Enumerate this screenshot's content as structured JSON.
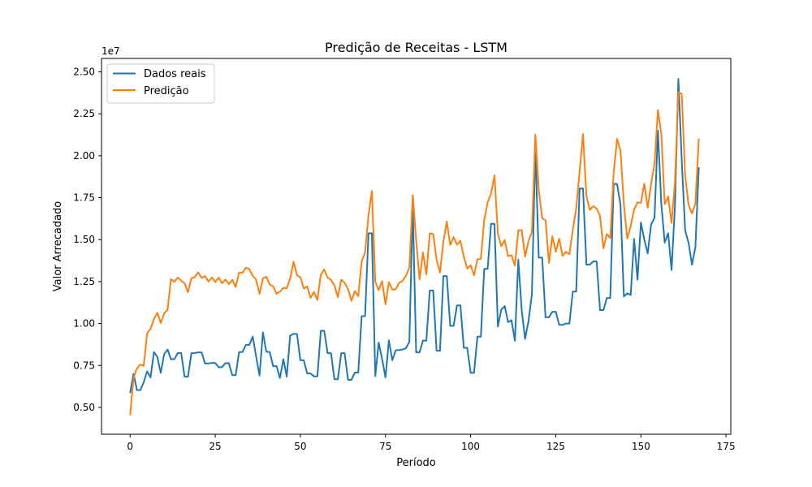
{
  "chart_data": {
    "type": "line",
    "title": "Predição de Receitas - LSTM",
    "xlabel": "Período",
    "ylabel": "Valor Arrecadado",
    "y_multiplier_label": "1e7",
    "xlim": [
      -8.4,
      176.4
    ],
    "ylim": [
      3400000,
      25800000
    ],
    "x_ticks": [
      0,
      25,
      50,
      75,
      100,
      125,
      150,
      175
    ],
    "y_ticks": [
      5000000,
      7500000,
      10000000,
      12500000,
      15000000,
      17500000,
      20000000,
      22500000,
      25000000
    ],
    "y_tick_labels": [
      "0.50",
      "0.75",
      "1.00",
      "1.25",
      "1.50",
      "1.75",
      "2.00",
      "2.25",
      "2.50"
    ],
    "legend_position": "top-left",
    "grid": false,
    "series": [
      {
        "name": "Dados reais",
        "color": "#1f77b4",
        "values": [
          5850000,
          7000000,
          6030000,
          6030000,
          6500000,
          7150000,
          6780000,
          8300000,
          8000000,
          7060000,
          8170000,
          8450000,
          7870000,
          7880000,
          8240000,
          8240000,
          6830000,
          6830000,
          8230000,
          8240000,
          8280000,
          8280000,
          7620000,
          7620000,
          7650000,
          7650000,
          7400000,
          7400000,
          7640000,
          7640000,
          6920000,
          6920000,
          8300000,
          8300000,
          8730000,
          8730000,
          9220000,
          8050000,
          6900000,
          9470000,
          8320000,
          8300000,
          7460000,
          7460000,
          6750000,
          7880000,
          6830000,
          9280000,
          9380000,
          9380000,
          7810000,
          7810000,
          7020000,
          7020000,
          6850000,
          6850000,
          9570000,
          9570000,
          8230000,
          8230000,
          6680000,
          6680000,
          8230000,
          8230000,
          6640000,
          6640000,
          7080000,
          7080000,
          10440000,
          10440000,
          15380000,
          15380000,
          6860000,
          8860000,
          7880000,
          6790000,
          9000000,
          7810000,
          8400000,
          8420000,
          8450000,
          8530000,
          8900000,
          17030000,
          8280000,
          8280000,
          8980000,
          8980000,
          11970000,
          11970000,
          8380000,
          8380000,
          12830000,
          12830000,
          9860000,
          9860000,
          11080000,
          11080000,
          8550000,
          8550000,
          7060000,
          7060000,
          9220000,
          9220000,
          13260000,
          13260000,
          15940000,
          15940000,
          9820000,
          10830000,
          11040000,
          10080000,
          10190000,
          8970000,
          13800000,
          10790000,
          9080000,
          10150000,
          11770000,
          20500000,
          13930000,
          13930000,
          10370000,
          10370000,
          10700000,
          10700000,
          9920000,
          9920000,
          10000000,
          10000000,
          11900000,
          11900000,
          18050000,
          18050000,
          13510000,
          13510000,
          13700000,
          13700000,
          10800000,
          10800000,
          11520000,
          11520000,
          18320000,
          18320000,
          17100000,
          11610000,
          11800000,
          11700000,
          15050000,
          12610000,
          16020000,
          15000000,
          14180000,
          15900000,
          16300000,
          21500000,
          17100000,
          14820000,
          15380000,
          13190000,
          17000000,
          24580000,
          19700000,
          15550000,
          14800000,
          13510000,
          14550000,
          19320000
        ]
      },
      {
        "name": "Predição",
        "color": "#ff7f0e",
        "values": [
          4530000,
          6740000,
          7320000,
          7560000,
          7480000,
          9420000,
          9680000,
          10270000,
          10630000,
          10030000,
          10600000,
          10830000,
          12640000,
          12480000,
          12740000,
          12550000,
          12400000,
          11860000,
          12680000,
          12780000,
          13050000,
          12720000,
          12830000,
          12500000,
          12740000,
          12470000,
          12740000,
          12400000,
          12620000,
          12350000,
          12600000,
          12180000,
          13040000,
          13020000,
          13330000,
          13250000,
          12840000,
          12620000,
          11760000,
          12690000,
          12790000,
          12320000,
          12220000,
          11780000,
          11900000,
          12120000,
          12110000,
          12690000,
          13680000,
          12880000,
          12760000,
          12080000,
          12210000,
          11530000,
          11880000,
          11410000,
          12900000,
          13230000,
          12730000,
          12600000,
          12280000,
          11570000,
          12610000,
          12430000,
          12050000,
          11350000,
          11930000,
          11630000,
          13700000,
          14230000,
          16430000,
          17900000,
          12480000,
          11990000,
          12530000,
          11150000,
          12460000,
          12020000,
          12040000,
          12430000,
          12540000,
          12840000,
          13330000,
          17650000,
          14970000,
          12630000,
          14230000,
          12930000,
          15370000,
          15330000,
          13820000,
          13040000,
          14880000,
          16080000,
          14680000,
          15150000,
          14700000,
          14930000,
          13970000,
          13280000,
          13470000,
          12870000,
          13830000,
          13870000,
          16180000,
          17210000,
          17750000,
          18830000,
          15370000,
          14600000,
          14980000,
          14020000,
          14070000,
          13440000,
          15560000,
          15560000,
          13990000,
          14930000,
          15460000,
          21260000,
          17990000,
          16280000,
          16150000,
          13610000,
          15200000,
          14280000,
          15060000,
          14030000,
          14270000,
          14130000,
          15580000,
          16860000,
          19060000,
          21290000,
          17590000,
          16770000,
          17000000,
          16850000,
          16400000,
          14480000,
          15340000,
          15090000,
          18990000,
          21010000,
          20310000,
          17110000,
          15070000,
          15800000,
          16800000,
          17210000,
          17200000,
          18340000,
          16900000,
          18320000,
          19510000,
          22720000,
          21300000,
          17110000,
          17560000,
          15990000,
          18390000,
          23790000,
          23680000,
          18800000,
          17060000,
          16560000,
          17140000,
          21020000
        ]
      }
    ]
  }
}
